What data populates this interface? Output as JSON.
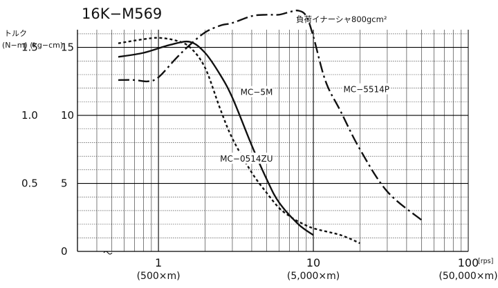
{
  "chart_data": {
    "type": "line",
    "title": "16K−M569",
    "subtitle": "負荷イナーシャ800gcm²",
    "ylabel": "トルク",
    "ylabel_units": "(N−m) (kg−cm)",
    "x_scale": "log",
    "xlim": [
      0.3,
      100
    ],
    "ylim": [
      0,
      16.3
    ],
    "grid": true,
    "x_ticks": [
      {
        "value": 1,
        "label": "1",
        "sub": "(500×m)"
      },
      {
        "value": 10,
        "label": "10",
        "sub": "(5,000×m)"
      },
      {
        "value": 100,
        "label": "100",
        "sub": "(50,000×m)"
      }
    ],
    "x_unit_rps": "[rps]",
    "x_unit_pps": "[PPS]",
    "y_ticks": [
      {
        "value": 0,
        "nm": "",
        "kg": "0"
      },
      {
        "value": 5,
        "nm": "0.5",
        "kg": "5"
      },
      {
        "value": 10,
        "nm": "1.0",
        "kg": "10"
      },
      {
        "value": 15,
        "nm": "1.5",
        "kg": "15"
      }
    ],
    "series": [
      {
        "name": "MC−5M",
        "style": "solid",
        "x": [
          0.55,
          0.8,
          1.2,
          1.6,
          2.0,
          2.5,
          3.0,
          4.0,
          5.0,
          6.0,
          8.0,
          10.0
        ],
        "y": [
          14.3,
          14.6,
          15.2,
          15.4,
          14.6,
          13.0,
          11.3,
          7.8,
          5.3,
          3.6,
          2.0,
          1.2
        ]
      },
      {
        "name": "MC−0514ZU",
        "style": "dotted",
        "x": [
          0.55,
          0.8,
          1.0,
          1.3,
          1.6,
          2.0,
          2.5,
          3.0,
          4.0,
          5.0,
          6.0,
          7.0,
          8.0,
          10.0,
          15.0,
          20.0
        ],
        "y": [
          15.3,
          15.6,
          15.7,
          15.5,
          15.0,
          13.5,
          10.5,
          8.3,
          5.8,
          4.3,
          3.2,
          2.6,
          2.2,
          1.7,
          1.2,
          0.6
        ]
      },
      {
        "name": "MC−5514P",
        "style": "dash-dot",
        "x": [
          0.55,
          0.7,
          0.85,
          1.0,
          1.3,
          1.6,
          2.0,
          2.5,
          3.0,
          4.0,
          5.0,
          6.0,
          7.0,
          8.0,
          9.0,
          10.0,
          12.0,
          15.0,
          20.0,
          30.0,
          50.0
        ],
        "y": [
          12.6,
          12.6,
          12.5,
          12.8,
          14.2,
          15.2,
          16.1,
          16.6,
          16.8,
          17.3,
          17.4,
          17.4,
          17.6,
          17.7,
          17.3,
          15.8,
          12.5,
          10.3,
          7.5,
          4.4,
          2.3
        ]
      }
    ],
    "annotations": [
      {
        "text": "MC−5M",
        "x": 4.3,
        "y": 11.6
      },
      {
        "text": "MC−0514ZU",
        "x": 3.7,
        "y": 6.7
      },
      {
        "text": "MC−5514P",
        "x": 22,
        "y": 11.8
      }
    ]
  }
}
